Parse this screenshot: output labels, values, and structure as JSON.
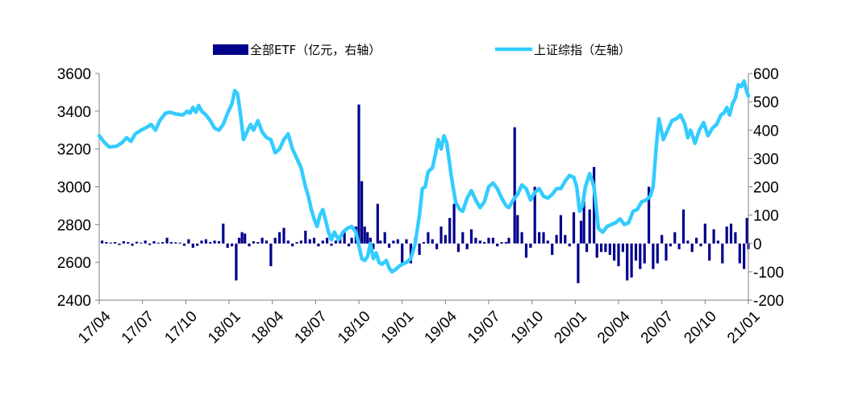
{
  "chart_data": {
    "type": "bar+line",
    "legend": [
      {
        "name": "全部ETF（亿元，右轴）",
        "kind": "bar",
        "color": "#00008B"
      },
      {
        "name": "上证综指（左轴）",
        "kind": "line",
        "color": "#33CCFF"
      }
    ],
    "x_tick_labels": [
      "17/04",
      "17/07",
      "17/10",
      "18/01",
      "18/04",
      "18/07",
      "18/10",
      "19/01",
      "19/04",
      "19/07",
      "19/10",
      "20/01",
      "20/04",
      "20/07",
      "20/10",
      "21/01"
    ],
    "y_left": {
      "min": 2400,
      "max": 3600,
      "ticks": [
        "2400",
        "2600",
        "2800",
        "3000",
        "3200",
        "3400",
        "3600"
      ]
    },
    "y_right": {
      "min": -200,
      "max": 600,
      "ticks": [
        "-200",
        "-100",
        "0",
        "100",
        "200",
        "300",
        "400",
        "500",
        "600"
      ]
    },
    "x_range_months": [
      0,
      45
    ],
    "line_series": {
      "name": "上证综指（左轴）",
      "points": [
        [
          0,
          3270
        ],
        [
          0.3,
          3240
        ],
        [
          0.7,
          3210
        ],
        [
          1.2,
          3215
        ],
        [
          1.6,
          3235
        ],
        [
          1.9,
          3260
        ],
        [
          2.2,
          3240
        ],
        [
          2.5,
          3280
        ],
        [
          2.9,
          3300
        ],
        [
          3.3,
          3315
        ],
        [
          3.6,
          3330
        ],
        [
          3.9,
          3300
        ],
        [
          4.2,
          3350
        ],
        [
          4.6,
          3390
        ],
        [
          4.9,
          3395
        ],
        [
          5.3,
          3385
        ],
        [
          5.8,
          3380
        ],
        [
          6.1,
          3400
        ],
        [
          6.3,
          3390
        ],
        [
          6.5,
          3420
        ],
        [
          6.7,
          3395
        ],
        [
          6.9,
          3430
        ],
        [
          7.1,
          3400
        ],
        [
          7.4,
          3380
        ],
        [
          7.7,
          3350
        ],
        [
          8.0,
          3310
        ],
        [
          8.3,
          3300
        ],
        [
          8.6,
          3330
        ],
        [
          8.9,
          3390
        ],
        [
          9.2,
          3440
        ],
        [
          9.4,
          3510
        ],
        [
          9.6,
          3490
        ],
        [
          9.8,
          3380
        ],
        [
          10.0,
          3250
        ],
        [
          10.3,
          3300
        ],
        [
          10.5,
          3330
        ],
        [
          10.7,
          3300
        ],
        [
          11.0,
          3350
        ],
        [
          11.3,
          3290
        ],
        [
          11.6,
          3260
        ],
        [
          11.9,
          3250
        ],
        [
          12.2,
          3180
        ],
        [
          12.5,
          3200
        ],
        [
          12.8,
          3250
        ],
        [
          13.1,
          3280
        ],
        [
          13.4,
          3200
        ],
        [
          13.7,
          3150
        ],
        [
          14.0,
          3100
        ],
        [
          14.3,
          3000
        ],
        [
          14.5,
          2950
        ],
        [
          14.7,
          2880
        ],
        [
          14.9,
          2830
        ],
        [
          15.1,
          2790
        ],
        [
          15.3,
          2850
        ],
        [
          15.5,
          2880
        ],
        [
          15.7,
          2820
        ],
        [
          15.9,
          2760
        ],
        [
          16.1,
          2720
        ],
        [
          16.3,
          2760
        ],
        [
          16.6,
          2720
        ],
        [
          16.9,
          2760
        ],
        [
          17.2,
          2780
        ],
        [
          17.5,
          2790
        ],
        [
          17.8,
          2760
        ],
        [
          18.0,
          2690
        ],
        [
          18.2,
          2620
        ],
        [
          18.4,
          2610
        ],
        [
          18.6,
          2630
        ],
        [
          18.8,
          2700
        ],
        [
          19.0,
          2620
        ],
        [
          19.2,
          2650
        ],
        [
          19.4,
          2600
        ],
        [
          19.6,
          2590
        ],
        [
          19.9,
          2610
        ],
        [
          20.1,
          2570
        ],
        [
          20.3,
          2550
        ],
        [
          20.5,
          2560
        ],
        [
          20.8,
          2580
        ],
        [
          21.0,
          2590
        ],
        [
          21.3,
          2600
        ],
        [
          21.6,
          2620
        ],
        [
          21.9,
          2700
        ],
        [
          22.2,
          2850
        ],
        [
          22.4,
          2990
        ],
        [
          22.6,
          3000
        ],
        [
          22.8,
          3080
        ],
        [
          23.1,
          3100
        ],
        [
          23.3,
          3170
        ],
        [
          23.5,
          3250
        ],
        [
          23.7,
          3200
        ],
        [
          23.9,
          3270
        ],
        [
          24.1,
          3230
        ],
        [
          24.4,
          3060
        ],
        [
          24.7,
          2920
        ],
        [
          25.0,
          2880
        ],
        [
          25.2,
          2870
        ],
        [
          25.5,
          2940
        ],
        [
          25.8,
          2980
        ],
        [
          26.1,
          2930
        ],
        [
          26.4,
          2890
        ],
        [
          26.7,
          2920
        ],
        [
          27.0,
          3000
        ],
        [
          27.3,
          3020
        ],
        [
          27.6,
          2990
        ],
        [
          27.9,
          2940
        ],
        [
          28.2,
          2900
        ],
        [
          28.4,
          2890
        ],
        [
          28.7,
          2930
        ],
        [
          29.0,
          2960
        ],
        [
          29.3,
          3010
        ],
        [
          29.6,
          2990
        ],
        [
          29.9,
          2930
        ],
        [
          30.2,
          2970
        ],
        [
          30.5,
          2990
        ],
        [
          30.8,
          2950
        ],
        [
          31.1,
          2940
        ],
        [
          31.4,
          2960
        ],
        [
          31.7,
          2990
        ],
        [
          32.0,
          2990
        ],
        [
          32.3,
          3030
        ],
        [
          32.6,
          3060
        ],
        [
          32.9,
          3050
        ],
        [
          33.1,
          3000
        ],
        [
          33.3,
          2870
        ],
        [
          33.5,
          2900
        ],
        [
          33.7,
          3000
        ],
        [
          34.0,
          3070
        ],
        [
          34.3,
          3000
        ],
        [
          34.6,
          2780
        ],
        [
          34.9,
          2760
        ],
        [
          35.2,
          2790
        ],
        [
          35.5,
          2800
        ],
        [
          35.8,
          2810
        ],
        [
          36.1,
          2830
        ],
        [
          36.4,
          2800
        ],
        [
          36.7,
          2810
        ],
        [
          37.0,
          2870
        ],
        [
          37.3,
          2880
        ],
        [
          37.6,
          2920
        ],
        [
          37.9,
          2930
        ],
        [
          38.2,
          2950
        ],
        [
          38.4,
          3000
        ],
        [
          38.6,
          3200
        ],
        [
          38.8,
          3360
        ],
        [
          39.1,
          3250
        ],
        [
          39.4,
          3300
        ],
        [
          39.7,
          3350
        ],
        [
          40.0,
          3360
        ],
        [
          40.3,
          3380
        ],
        [
          40.6,
          3330
        ],
        [
          40.8,
          3260
        ],
        [
          41.0,
          3300
        ],
        [
          41.3,
          3230
        ],
        [
          41.6,
          3300
        ],
        [
          41.9,
          3340
        ],
        [
          42.2,
          3270
        ],
        [
          42.5,
          3310
        ],
        [
          42.8,
          3330
        ],
        [
          43.1,
          3380
        ],
        [
          43.3,
          3390
        ],
        [
          43.5,
          3420
        ],
        [
          43.7,
          3380
        ],
        [
          43.9,
          3440
        ],
        [
          44.1,
          3470
        ],
        [
          44.3,
          3540
        ],
        [
          44.5,
          3530
        ],
        [
          44.7,
          3560
        ],
        [
          44.9,
          3500
        ],
        [
          45.0,
          3480
        ]
      ]
    },
    "bar_series": {
      "name": "全部ETF（亿元，右轴）",
      "points": [
        [
          0.2,
          10
        ],
        [
          0.5,
          5
        ],
        [
          0.8,
          3
        ],
        [
          1.1,
          5
        ],
        [
          1.4,
          -5
        ],
        [
          1.7,
          8
        ],
        [
          2.0,
          5
        ],
        [
          2.3,
          -8
        ],
        [
          2.6,
          6
        ],
        [
          2.9,
          3
        ],
        [
          3.2,
          10
        ],
        [
          3.5,
          -5
        ],
        [
          3.8,
          8
        ],
        [
          4.1,
          3
        ],
        [
          4.4,
          5
        ],
        [
          4.7,
          20
        ],
        [
          5.0,
          5
        ],
        [
          5.3,
          4
        ],
        [
          5.6,
          3
        ],
        [
          5.9,
          -8
        ],
        [
          6.2,
          15
        ],
        [
          6.5,
          -15
        ],
        [
          6.8,
          -8
        ],
        [
          7.1,
          10
        ],
        [
          7.4,
          15
        ],
        [
          7.7,
          5
        ],
        [
          8.0,
          10
        ],
        [
          8.3,
          8
        ],
        [
          8.6,
          70
        ],
        [
          8.9,
          -15
        ],
        [
          9.2,
          -10
        ],
        [
          9.5,
          -130
        ],
        [
          9.7,
          20
        ],
        [
          9.9,
          40
        ],
        [
          10.1,
          35
        ],
        [
          10.4,
          -10
        ],
        [
          10.7,
          8
        ],
        [
          11.0,
          5
        ],
        [
          11.3,
          20
        ],
        [
          11.6,
          10
        ],
        [
          11.9,
          -80
        ],
        [
          12.2,
          20
        ],
        [
          12.5,
          40
        ],
        [
          12.8,
          55
        ],
        [
          13.1,
          10
        ],
        [
          13.4,
          -10
        ],
        [
          13.7,
          5
        ],
        [
          14.0,
          10
        ],
        [
          14.3,
          45
        ],
        [
          14.6,
          15
        ],
        [
          14.9,
          20
        ],
        [
          15.2,
          -10
        ],
        [
          15.5,
          10
        ],
        [
          15.8,
          20
        ],
        [
          16.1,
          -8
        ],
        [
          16.4,
          10
        ],
        [
          16.7,
          20
        ],
        [
          17.0,
          50
        ],
        [
          17.3,
          -10
        ],
        [
          17.5,
          20
        ],
        [
          17.8,
          60
        ],
        [
          18.0,
          490
        ],
        [
          18.2,
          220
        ],
        [
          18.4,
          60
        ],
        [
          18.6,
          40
        ],
        [
          18.8,
          20
        ],
        [
          19.0,
          -20
        ],
        [
          19.3,
          140
        ],
        [
          19.5,
          10
        ],
        [
          19.8,
          40
        ],
        [
          20.1,
          -15
        ],
        [
          20.4,
          10
        ],
        [
          20.7,
          15
        ],
        [
          21.0,
          -70
        ],
        [
          21.3,
          15
        ],
        [
          21.6,
          -70
        ],
        [
          21.9,
          20
        ],
        [
          22.2,
          -40
        ],
        [
          22.5,
          5
        ],
        [
          22.8,
          40
        ],
        [
          23.1,
          15
        ],
        [
          23.4,
          -20
        ],
        [
          23.7,
          60
        ],
        [
          24.0,
          30
        ],
        [
          24.3,
          90
        ],
        [
          24.6,
          140
        ],
        [
          24.9,
          -30
        ],
        [
          25.2,
          40
        ],
        [
          25.5,
          -20
        ],
        [
          25.8,
          50
        ],
        [
          26.1,
          20
        ],
        [
          26.4,
          10
        ],
        [
          26.7,
          5
        ],
        [
          27.0,
          20
        ],
        [
          27.3,
          20
        ],
        [
          27.6,
          -10
        ],
        [
          27.9,
          5
        ],
        [
          28.2,
          5
        ],
        [
          28.4,
          20
        ],
        [
          28.8,
          410
        ],
        [
          29.0,
          100
        ],
        [
          29.3,
          40
        ],
        [
          29.6,
          -50
        ],
        [
          29.9,
          -15
        ],
        [
          30.2,
          200
        ],
        [
          30.5,
          40
        ],
        [
          30.8,
          40
        ],
        [
          31.1,
          10
        ],
        [
          31.4,
          -40
        ],
        [
          31.7,
          30
        ],
        [
          32.0,
          100
        ],
        [
          32.3,
          30
        ],
        [
          32.6,
          -10
        ],
        [
          32.9,
          110
        ],
        [
          33.2,
          -140
        ],
        [
          33.4,
          80
        ],
        [
          33.6,
          150
        ],
        [
          33.8,
          -30
        ],
        [
          34.0,
          120
        ],
        [
          34.3,
          270
        ],
        [
          34.5,
          -50
        ],
        [
          34.8,
          -30
        ],
        [
          35.1,
          -30
        ],
        [
          35.4,
          -40
        ],
        [
          35.7,
          -60
        ],
        [
          36.0,
          -80
        ],
        [
          36.3,
          -30
        ],
        [
          36.6,
          -130
        ],
        [
          36.9,
          -120
        ],
        [
          37.2,
          -60
        ],
        [
          37.5,
          -90
        ],
        [
          37.8,
          -70
        ],
        [
          38.1,
          200
        ],
        [
          38.4,
          -90
        ],
        [
          38.7,
          -70
        ],
        [
          39.0,
          30
        ],
        [
          39.3,
          -60
        ],
        [
          39.6,
          -10
        ],
        [
          39.9,
          40
        ],
        [
          40.2,
          -20
        ],
        [
          40.5,
          120
        ],
        [
          40.8,
          10
        ],
        [
          41.1,
          -30
        ],
        [
          41.4,
          20
        ],
        [
          41.7,
          -10
        ],
        [
          42.0,
          70
        ],
        [
          42.3,
          -60
        ],
        [
          42.6,
          50
        ],
        [
          42.9,
          10
        ],
        [
          43.2,
          -70
        ],
        [
          43.5,
          60
        ],
        [
          43.8,
          70
        ],
        [
          44.1,
          40
        ],
        [
          44.4,
          -70
        ],
        [
          44.7,
          -90
        ],
        [
          44.9,
          90
        ],
        [
          45.0,
          -20
        ]
      ]
    }
  }
}
